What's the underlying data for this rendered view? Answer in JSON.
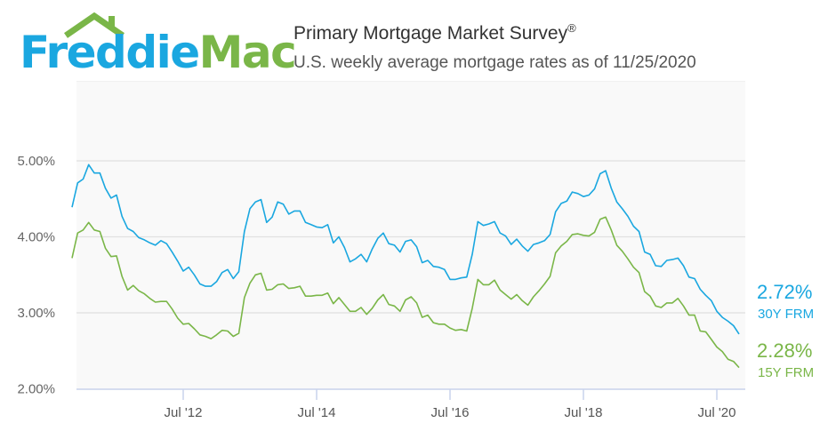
{
  "logo": {
    "part1": "Freddie",
    "part2": "Mac",
    "colors": {
      "freddie": "#1aa7e0",
      "mac": "#7ab648"
    }
  },
  "header": {
    "title": "Primary Mortgage Market Survey",
    "title_mark": "®",
    "subtitle": "U.S. weekly average mortgage rates as of 11/25/2020"
  },
  "chart_data": {
    "type": "line",
    "title": "Primary Mortgage Market Survey®",
    "subtitle": "U.S. weekly average mortgage rates as of 11/25/2020",
    "xlabel": "",
    "ylabel": "",
    "x_ticks": [
      {
        "label": "Jul '12",
        "date": "2012-07"
      },
      {
        "label": "Jul '14",
        "date": "2014-07"
      },
      {
        "label": "Jul '16",
        "date": "2016-07"
      },
      {
        "label": "Jul '18",
        "date": "2018-07"
      },
      {
        "label": "Jul '20",
        "date": "2020-07"
      }
    ],
    "y_ticks": [
      "2.00%",
      "3.00%",
      "4.00%",
      "5.00%"
    ],
    "y_tick_values": [
      2,
      3,
      4,
      5
    ],
    "xlim": [
      "2010-11",
      "2020-11"
    ],
    "ylim": [
      2.0,
      5.4
    ],
    "grid": "horizontal",
    "legend": "right (end labels)",
    "x": [
      "2010-11",
      "2010-12",
      "2011-01",
      "2011-02",
      "2011-03",
      "2011-04",
      "2011-05",
      "2011-06",
      "2011-07",
      "2011-08",
      "2011-09",
      "2011-10",
      "2011-11",
      "2011-12",
      "2012-01",
      "2012-02",
      "2012-03",
      "2012-04",
      "2012-05",
      "2012-06",
      "2012-07",
      "2012-08",
      "2012-09",
      "2012-10",
      "2012-11",
      "2012-12",
      "2013-01",
      "2013-02",
      "2013-03",
      "2013-04",
      "2013-05",
      "2013-06",
      "2013-07",
      "2013-08",
      "2013-09",
      "2013-10",
      "2013-11",
      "2013-12",
      "2014-01",
      "2014-02",
      "2014-03",
      "2014-04",
      "2014-05",
      "2014-06",
      "2014-07",
      "2014-08",
      "2014-09",
      "2014-10",
      "2014-11",
      "2014-12",
      "2015-01",
      "2015-02",
      "2015-03",
      "2015-04",
      "2015-05",
      "2015-06",
      "2015-07",
      "2015-08",
      "2015-09",
      "2015-10",
      "2015-11",
      "2015-12",
      "2016-01",
      "2016-02",
      "2016-03",
      "2016-04",
      "2016-05",
      "2016-06",
      "2016-07",
      "2016-08",
      "2016-09",
      "2016-10",
      "2016-11",
      "2016-12",
      "2017-01",
      "2017-02",
      "2017-03",
      "2017-04",
      "2017-05",
      "2017-06",
      "2017-07",
      "2017-08",
      "2017-09",
      "2017-10",
      "2017-11",
      "2017-12",
      "2018-01",
      "2018-02",
      "2018-03",
      "2018-04",
      "2018-05",
      "2018-06",
      "2018-07",
      "2018-08",
      "2018-09",
      "2018-10",
      "2018-11",
      "2018-12",
      "2019-01",
      "2019-02",
      "2019-03",
      "2019-04",
      "2019-05",
      "2019-06",
      "2019-07",
      "2019-08",
      "2019-09",
      "2019-10",
      "2019-11",
      "2019-12",
      "2020-01",
      "2020-02",
      "2020-03",
      "2020-04",
      "2020-05",
      "2020-06",
      "2020-07",
      "2020-08",
      "2020-09",
      "2020-10",
      "2020-11"
    ],
    "series": [
      {
        "name": "30Y FRM",
        "color": "#1aa7e0",
        "last_label": "2.72%",
        "values": [
          4.39,
          4.71,
          4.76,
          4.95,
          4.84,
          4.84,
          4.64,
          4.51,
          4.55,
          4.27,
          4.11,
          4.07,
          3.99,
          3.96,
          3.92,
          3.89,
          3.95,
          3.91,
          3.8,
          3.68,
          3.55,
          3.6,
          3.5,
          3.38,
          3.35,
          3.35,
          3.41,
          3.53,
          3.57,
          3.45,
          3.54,
          4.07,
          4.37,
          4.46,
          4.49,
          4.19,
          4.26,
          4.46,
          4.43,
          4.3,
          4.34,
          4.34,
          4.19,
          4.16,
          4.13,
          4.12,
          4.16,
          3.92,
          4.0,
          3.86,
          3.67,
          3.71,
          3.77,
          3.67,
          3.84,
          3.98,
          4.05,
          3.91,
          3.89,
          3.8,
          3.94,
          3.96,
          3.87,
          3.66,
          3.69,
          3.61,
          3.6,
          3.57,
          3.44,
          3.44,
          3.46,
          3.47,
          3.77,
          4.2,
          4.15,
          4.17,
          4.2,
          4.05,
          4.01,
          3.9,
          3.97,
          3.88,
          3.81,
          3.9,
          3.92,
          3.95,
          4.03,
          4.33,
          4.44,
          4.47,
          4.59,
          4.57,
          4.53,
          4.55,
          4.63,
          4.83,
          4.87,
          4.64,
          4.46,
          4.37,
          4.27,
          4.14,
          4.07,
          3.8,
          3.77,
          3.62,
          3.61,
          3.69,
          3.7,
          3.72,
          3.62,
          3.47,
          3.45,
          3.31,
          3.23,
          3.16,
          3.02,
          2.94,
          2.89,
          2.83,
          2.72
        ]
      },
      {
        "name": "15Y FRM",
        "color": "#7ab648",
        "last_label": "2.28%",
        "values": [
          3.72,
          4.05,
          4.09,
          4.19,
          4.09,
          4.07,
          3.85,
          3.74,
          3.75,
          3.48,
          3.3,
          3.36,
          3.29,
          3.25,
          3.19,
          3.14,
          3.15,
          3.15,
          3.05,
          2.93,
          2.85,
          2.86,
          2.79,
          2.71,
          2.69,
          2.66,
          2.71,
          2.77,
          2.76,
          2.69,
          2.73,
          3.2,
          3.39,
          3.5,
          3.52,
          3.3,
          3.31,
          3.37,
          3.38,
          3.32,
          3.33,
          3.35,
          3.22,
          3.22,
          3.23,
          3.23,
          3.26,
          3.12,
          3.2,
          3.11,
          3.02,
          3.02,
          3.07,
          2.98,
          3.06,
          3.17,
          3.24,
          3.11,
          3.09,
          3.02,
          3.17,
          3.21,
          3.13,
          2.94,
          2.97,
          2.87,
          2.85,
          2.85,
          2.8,
          2.77,
          2.78,
          2.76,
          3.06,
          3.44,
          3.37,
          3.37,
          3.43,
          3.3,
          3.24,
          3.18,
          3.24,
          3.16,
          3.1,
          3.21,
          3.29,
          3.38,
          3.48,
          3.79,
          3.88,
          3.94,
          4.03,
          4.04,
          4.02,
          4.01,
          4.06,
          4.23,
          4.26,
          4.09,
          3.89,
          3.81,
          3.71,
          3.6,
          3.53,
          3.28,
          3.22,
          3.09,
          3.07,
          3.13,
          3.13,
          3.19,
          3.09,
          2.97,
          2.97,
          2.76,
          2.75,
          2.65,
          2.55,
          2.49,
          2.39,
          2.36,
          2.28
        ]
      }
    ]
  }
}
